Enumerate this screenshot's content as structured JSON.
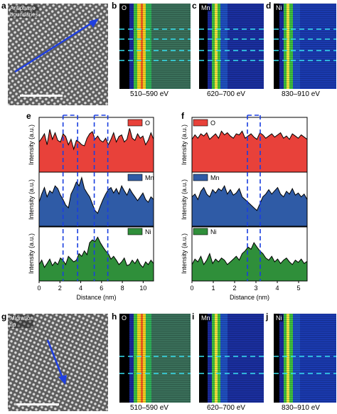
{
  "panels": {
    "a": "a",
    "b": "b",
    "c": "c",
    "d": "d",
    "e": "e",
    "f": "f",
    "g": "g",
    "h": "h",
    "i": "i",
    "j": "j"
  },
  "top_haadf": {
    "caption": "Antiphase\nboundaries"
  },
  "bottom_haadf": {
    "caption": "Migration\ntip"
  },
  "maps_top": [
    {
      "element": "O",
      "range": "510–590 eV"
    },
    {
      "element": "Mn",
      "range": "620–700 eV"
    },
    {
      "element": "Ni",
      "range": "830–910 eV"
    }
  ],
  "maps_bottom": [
    {
      "element": "O",
      "range": "510–590 eV"
    },
    {
      "element": "Mn",
      "range": "620–700 eV"
    },
    {
      "element": "Ni",
      "range": "830–910 eV"
    }
  ],
  "chart_data": [
    {
      "type": "area",
      "panel": "e",
      "xlabel": "Distance (nm)",
      "ylabel": "Intensity (a.u.)",
      "xlim": [
        0,
        11
      ],
      "xticks": [
        0,
        2,
        4,
        6,
        8,
        10
      ],
      "marker_positions_nm": [
        2.3,
        3.7,
        5.3,
        6.6
      ],
      "series": [
        {
          "name": "O",
          "color": "#e8413a",
          "values": [
            0.55,
            0.62,
            0.7,
            0.5,
            0.78,
            0.6,
            0.72,
            0.58,
            0.55,
            0.7,
            0.65,
            0.5,
            0.6,
            0.42,
            0.58,
            0.55,
            0.5,
            0.48,
            0.62,
            0.7,
            0.74,
            0.6,
            0.66,
            0.58,
            0.55,
            0.62,
            0.5,
            0.6,
            0.72,
            0.55,
            0.65,
            0.68,
            0.55,
            0.6,
            0.8,
            0.62,
            0.58,
            0.7,
            0.62,
            0.66,
            0.5,
            0.58,
            0.72,
            0.6
          ]
        },
        {
          "name": "Mn",
          "color": "#2f5ba6",
          "values": [
            0.45,
            0.6,
            0.72,
            0.55,
            0.66,
            0.62,
            0.75,
            0.7,
            0.58,
            0.5,
            0.4,
            0.35,
            0.6,
            0.7,
            0.82,
            0.75,
            0.9,
            0.7,
            0.62,
            0.55,
            0.42,
            0.3,
            0.25,
            0.38,
            0.5,
            0.6,
            0.68,
            0.72,
            0.62,
            0.7,
            0.6,
            0.75,
            0.66,
            0.58,
            0.7,
            0.62,
            0.55,
            0.48,
            0.55,
            0.62,
            0.5,
            0.45,
            0.55,
            0.5
          ]
        },
        {
          "name": "Ni",
          "color": "#2f8f3a",
          "values": [
            0.3,
            0.38,
            0.25,
            0.32,
            0.4,
            0.28,
            0.35,
            0.3,
            0.42,
            0.38,
            0.3,
            0.45,
            0.4,
            0.35,
            0.38,
            0.5,
            0.45,
            0.55,
            0.48,
            0.7,
            0.75,
            0.72,
            0.8,
            0.7,
            0.62,
            0.55,
            0.5,
            0.4,
            0.45,
            0.38,
            0.3,
            0.35,
            0.42,
            0.28,
            0.3,
            0.38,
            0.32,
            0.4,
            0.3,
            0.25,
            0.35,
            0.3,
            0.38,
            0.32
          ]
        }
      ]
    },
    {
      "type": "area",
      "panel": "f",
      "xlabel": "Distance (nm)",
      "ylabel": "Intensity (a.u.)",
      "xlim": [
        0,
        5.4
      ],
      "xticks": [
        0,
        1,
        2,
        3,
        4,
        5
      ],
      "marker_positions_nm": [
        2.6,
        3.2
      ],
      "series": [
        {
          "name": "O",
          "color": "#e8413a",
          "values": [
            0.6,
            0.68,
            0.62,
            0.7,
            0.66,
            0.72,
            0.6,
            0.65,
            0.7,
            0.62,
            0.75,
            0.68,
            0.72,
            0.66,
            0.62,
            0.7,
            0.68,
            0.75,
            0.62,
            0.66,
            0.7,
            0.64,
            0.6,
            0.72,
            0.68,
            0.62,
            0.66,
            0.7,
            0.64,
            0.68,
            0.72,
            0.62,
            0.66,
            0.6,
            0.7,
            0.66,
            0.62,
            0.68,
            0.64,
            0.6
          ]
        },
        {
          "name": "Mn",
          "color": "#2f5ba6",
          "values": [
            0.55,
            0.6,
            0.5,
            0.65,
            0.72,
            0.6,
            0.55,
            0.68,
            0.62,
            0.7,
            0.66,
            0.75,
            0.6,
            0.68,
            0.58,
            0.62,
            0.7,
            0.55,
            0.5,
            0.45,
            0.4,
            0.35,
            0.3,
            0.42,
            0.55,
            0.6,
            0.68,
            0.6,
            0.66,
            0.72,
            0.6,
            0.55,
            0.65,
            0.6,
            0.7,
            0.58,
            0.62,
            0.55,
            0.6,
            0.5
          ]
        },
        {
          "name": "Ni",
          "color": "#2f8f3a",
          "values": [
            0.3,
            0.4,
            0.35,
            0.45,
            0.3,
            0.38,
            0.5,
            0.32,
            0.4,
            0.35,
            0.42,
            0.38,
            0.3,
            0.35,
            0.4,
            0.45,
            0.38,
            0.5,
            0.55,
            0.62,
            0.58,
            0.7,
            0.62,
            0.55,
            0.5,
            0.42,
            0.38,
            0.45,
            0.35,
            0.4,
            0.32,
            0.38,
            0.42,
            0.35,
            0.3,
            0.38,
            0.34,
            0.4,
            0.32,
            0.36
          ]
        }
      ]
    }
  ],
  "colors": {
    "cyan_dash": "#38e0f0",
    "blue_arrow": "#1f3fe0",
    "marker_dash": "#1a3fe0"
  }
}
